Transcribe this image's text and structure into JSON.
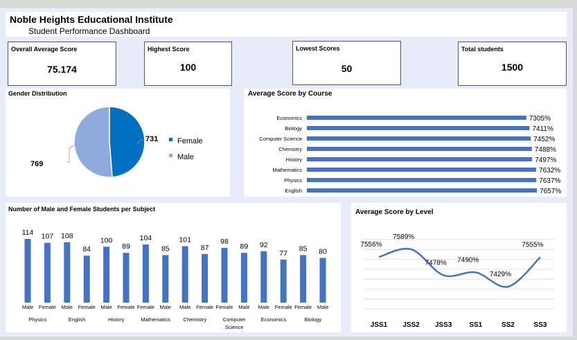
{
  "header": {
    "institute": "Noble Heights Educational Institute",
    "subtitle": "Student Performance Dashboard"
  },
  "kpis": [
    {
      "label": "Overall Average Score",
      "value": "75.174"
    },
    {
      "label": "Highest Score",
      "value": "100"
    },
    {
      "label": "Lowest Scores",
      "value": "50"
    },
    {
      "label": "Total students",
      "value": "1500"
    }
  ],
  "colors": {
    "female": "#0070c0",
    "male": "#8faadc",
    "bar": "#4472c4",
    "line": "#4472c4"
  },
  "chart_data": [
    {
      "id": "gender",
      "type": "pie",
      "title": "Gender Distribution",
      "slices": [
        {
          "label": "Female",
          "value": 731
        },
        {
          "label": "Male",
          "value": 769
        }
      ]
    },
    {
      "id": "course",
      "type": "bar",
      "orientation": "horizontal",
      "title": "Average Score by Course",
      "categories": [
        "Economics",
        "Biology",
        "Computer Science",
        "Chemistry",
        "History",
        "Mathematics",
        "Physics",
        "English"
      ],
      "values": [
        7305,
        7411,
        7452,
        7488,
        7497,
        7632,
        7637,
        7657
      ],
      "labels": [
        "7305%",
        "7411%",
        "7452%",
        "7488%",
        "7497%",
        "7632%",
        "7637%",
        "7657%"
      ]
    },
    {
      "id": "subject",
      "type": "bar",
      "title": "Number of Male and Female Students per Subject",
      "subjects": [
        "Physics",
        "English",
        "History",
        "Mathematics",
        "Chemistry",
        "Computer Science",
        "Economics",
        "Biology"
      ],
      "gender_labels": [
        "Male",
        "Female",
        "Male",
        "Female",
        "Male",
        "Female",
        "Female",
        "Male",
        "Male",
        "Female",
        "Female",
        "Male",
        "Male",
        "Female",
        "Female",
        "Male"
      ],
      "values": [
        114,
        107,
        108,
        84,
        100,
        89,
        104,
        85,
        101,
        87,
        98,
        89,
        92,
        77,
        85,
        80
      ]
    },
    {
      "id": "level",
      "type": "line",
      "title": "Average Score by Level",
      "categories": [
        "JSS1",
        "JSS2",
        "JSS3",
        "SS1",
        "SS2",
        "SS3"
      ],
      "values": [
        7556,
        7589,
        7478,
        7490,
        7429,
        7555
      ],
      "labels": [
        "7556%",
        "7589%",
        "7478%",
        "7490%",
        "7429%",
        "7555%"
      ]
    }
  ]
}
